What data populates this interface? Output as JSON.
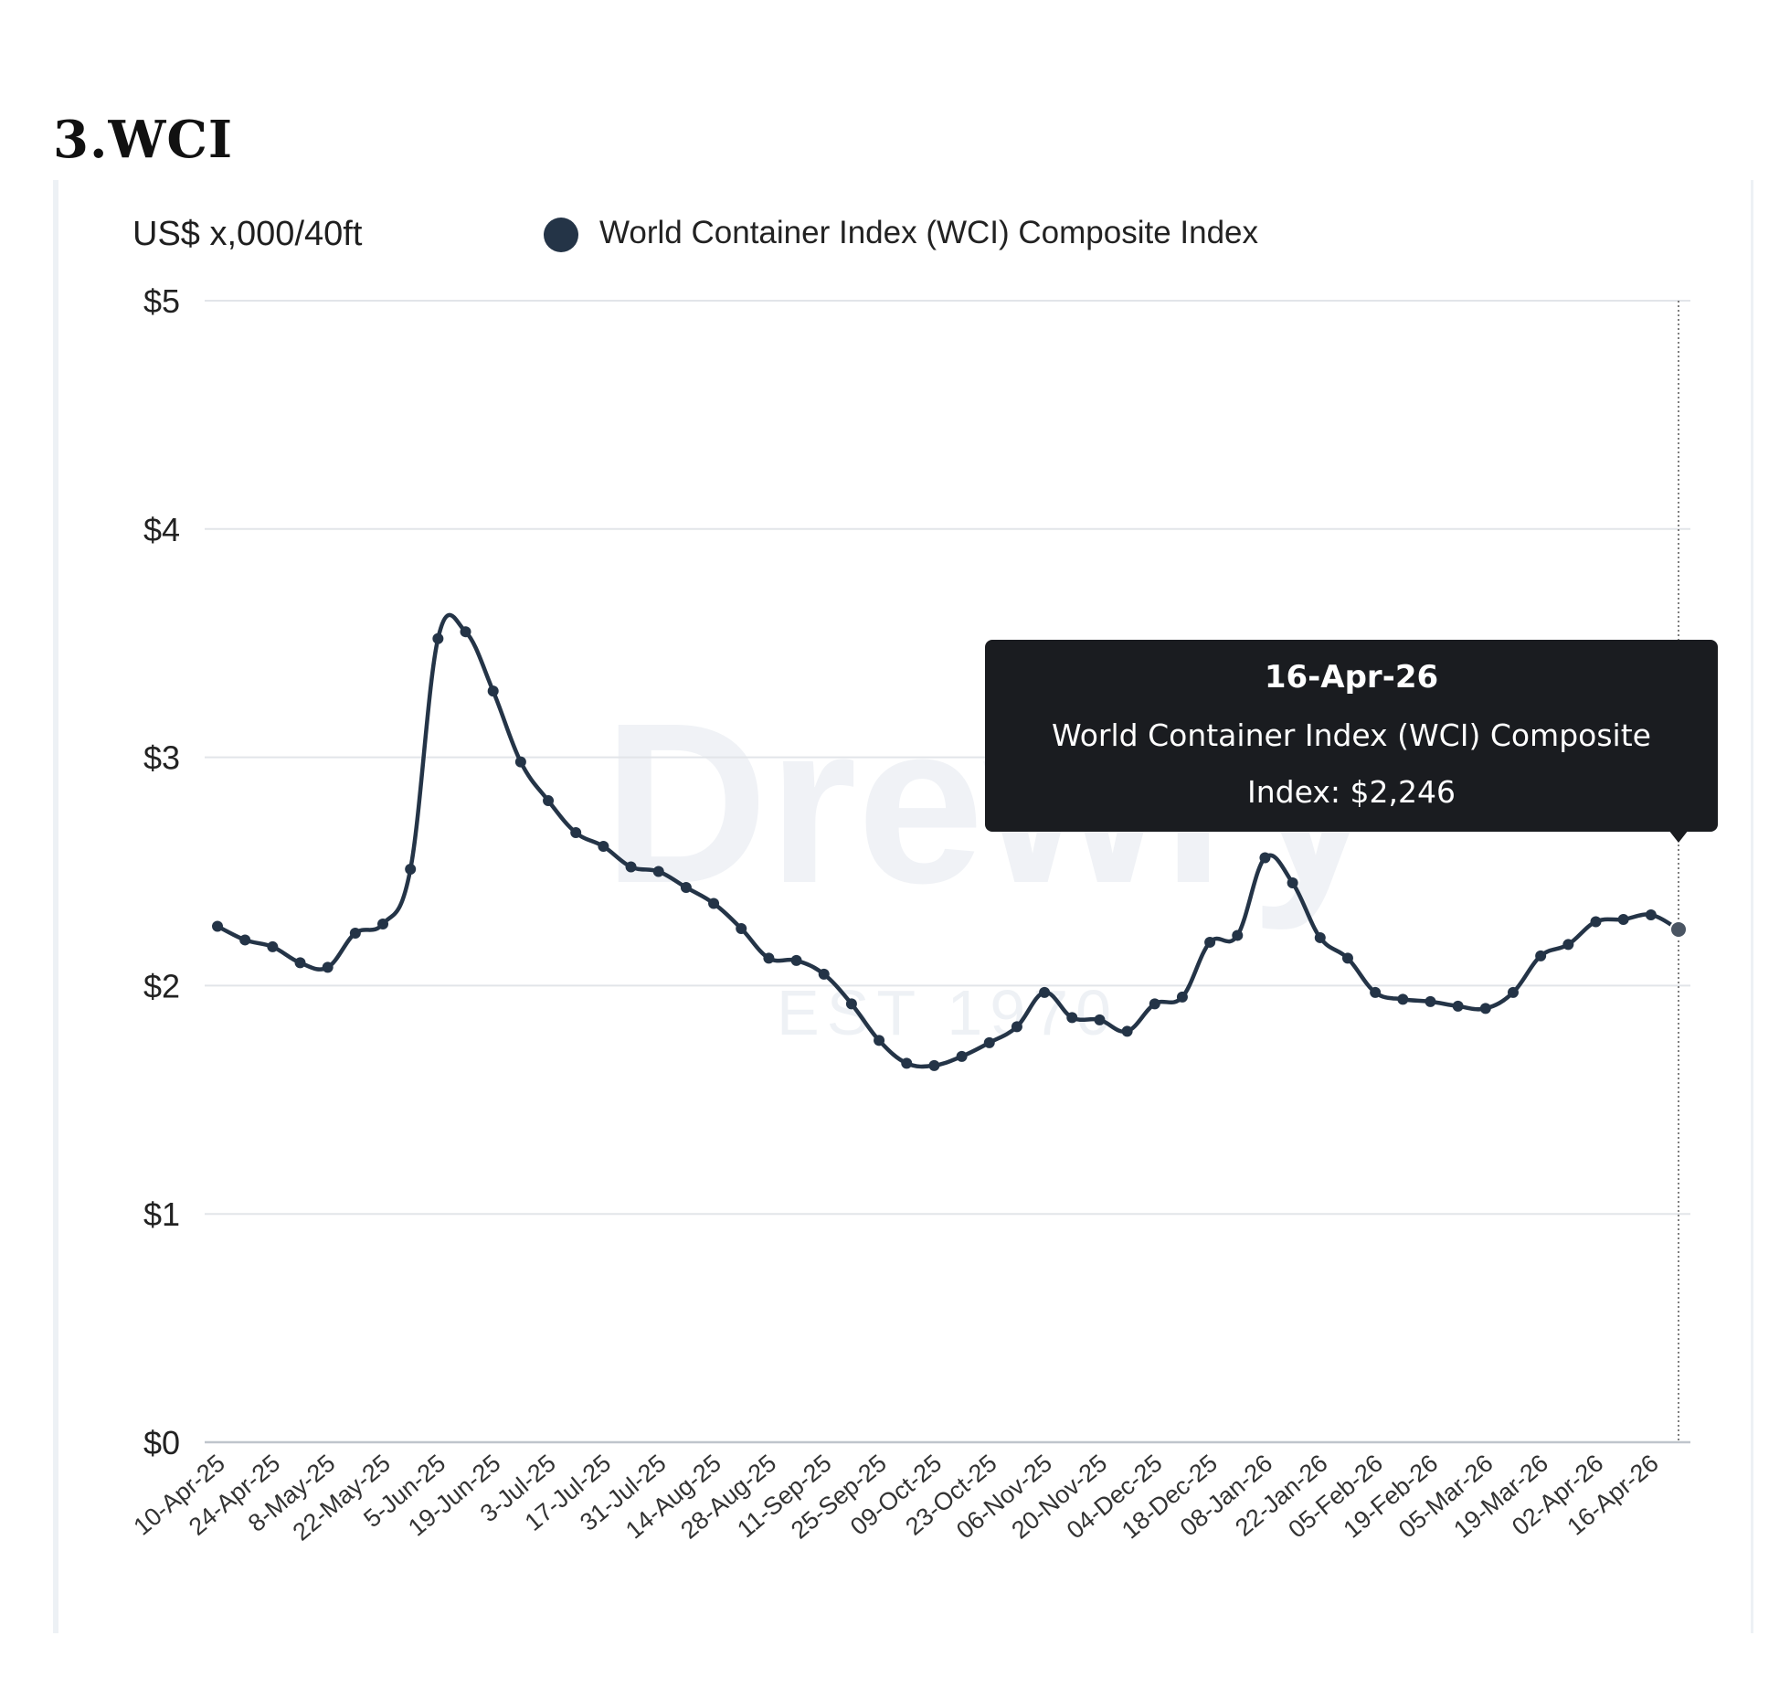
{
  "heading": "3.WCI",
  "chart_data": {
    "type": "line",
    "unit_label": "US$ x,000/40ft",
    "legend": [
      {
        "name": "World Container Index (WCI) Composite Index",
        "color": "#243447"
      }
    ],
    "watermark": {
      "brand": "Drewry",
      "since": "EST 1970"
    },
    "y_ticks": [
      "$0",
      "$1",
      "$2",
      "$3",
      "$4",
      "$5"
    ],
    "ylim": [
      0,
      5
    ],
    "grid": true,
    "x_tick_labels": [
      "10-Apr-25",
      "24-Apr-25",
      "8-May-25",
      "22-May-25",
      "5-Jun-25",
      "19-Jun-25",
      "3-Jul-25",
      "17-Jul-25",
      "31-Jul-25",
      "14-Aug-25",
      "28-Aug-25",
      "11-Sep-25",
      "25-Sep-25",
      "09-Oct-25",
      "23-Oct-25",
      "06-Nov-25",
      "20-Nov-25",
      "04-Dec-25",
      "18-Dec-25",
      "08-Jan-26",
      "22-Jan-26",
      "05-Feb-26",
      "19-Feb-26",
      "05-Mar-26",
      "19-Mar-26",
      "02-Apr-26",
      "16-Apr-26"
    ],
    "series": [
      {
        "name": "World Container Index (WCI) Composite Index",
        "color": "#243447",
        "x": [
          "10-Apr-25",
          "17-Apr-25",
          "24-Apr-25",
          "1-May-25",
          "8-May-25",
          "15-May-25",
          "22-May-25",
          "29-May-25",
          "5-Jun-25",
          "12-Jun-25",
          "19-Jun-25",
          "26-Jun-25",
          "3-Jul-25",
          "10-Jul-25",
          "17-Jul-25",
          "24-Jul-25",
          "31-Jul-25",
          "7-Aug-25",
          "14-Aug-25",
          "21-Aug-25",
          "28-Aug-25",
          "4-Sep-25",
          "11-Sep-25",
          "18-Sep-25",
          "25-Sep-25",
          "2-Oct-25",
          "09-Oct-25",
          "16-Oct-25",
          "23-Oct-25",
          "30-Oct-25",
          "06-Nov-25",
          "13-Nov-25",
          "20-Nov-25",
          "27-Nov-25",
          "04-Dec-25",
          "11-Dec-25",
          "18-Dec-25",
          "25-Dec-25",
          "01-Jan-26",
          "08-Jan-26",
          "15-Jan-26",
          "22-Jan-26",
          "29-Jan-26",
          "05-Feb-26",
          "12-Feb-26",
          "19-Feb-26",
          "26-Feb-26",
          "05-Mar-26",
          "12-Mar-26",
          "19-Mar-26",
          "26-Mar-26",
          "02-Apr-26",
          "09-Apr-26",
          "16-Apr-26"
        ],
        "values": [
          2.26,
          2.2,
          2.17,
          2.1,
          2.08,
          2.23,
          2.27,
          2.51,
          3.52,
          3.55,
          3.29,
          2.98,
          2.81,
          2.67,
          2.61,
          2.52,
          2.5,
          2.43,
          2.36,
          2.25,
          2.12,
          2.11,
          2.05,
          1.92,
          1.76,
          1.66,
          1.65,
          1.69,
          1.75,
          1.82,
          1.97,
          1.86,
          1.85,
          1.8,
          1.92,
          1.95,
          2.19,
          2.22,
          2.56,
          2.45,
          2.21,
          2.12,
          1.97,
          1.94,
          1.93,
          1.91,
          1.9,
          1.97,
          2.13,
          2.18,
          2.28,
          2.29,
          2.31,
          2.246
        ]
      }
    ],
    "tooltip": {
      "date": "16-Apr-26",
      "line1": "World Container Index (WCI) Composite",
      "line2": "Index: $2,246"
    }
  }
}
